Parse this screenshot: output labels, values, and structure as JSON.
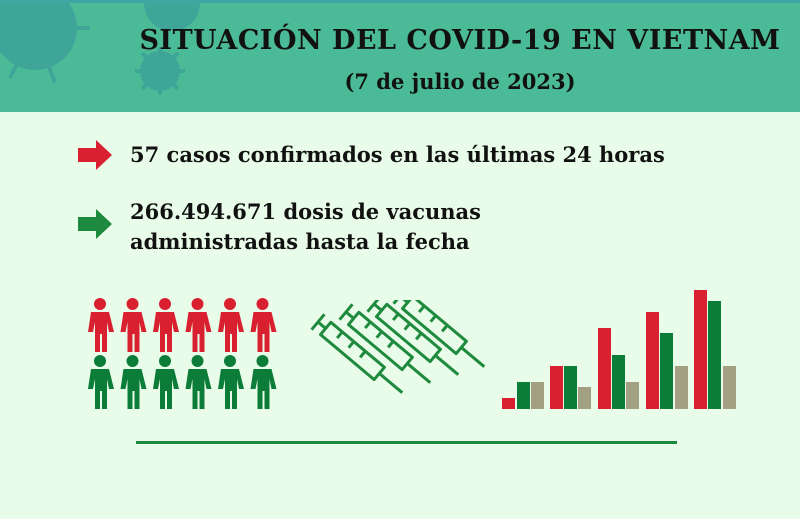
{
  "header": {
    "title": "SITUACIÓN DEL COVID-19 EN VIETNAM",
    "subtitle": "(7 de julio de 2023)"
  },
  "stats": [
    {
      "icon": "arrow-right-icon",
      "color": "#d92030",
      "text": "57 casos confirmados en las últimas 24 horas"
    },
    {
      "icon": "arrow-right-icon",
      "color": "#1e8a3e",
      "text": "266.494.671 dosis de vacunas administradas hasta la fecha"
    }
  ],
  "colors": {
    "header": "#4bbb97",
    "background": "#e9fce9",
    "red": "#d92030",
    "green": "#0c7d38",
    "gray": "#a29f82"
  }
}
